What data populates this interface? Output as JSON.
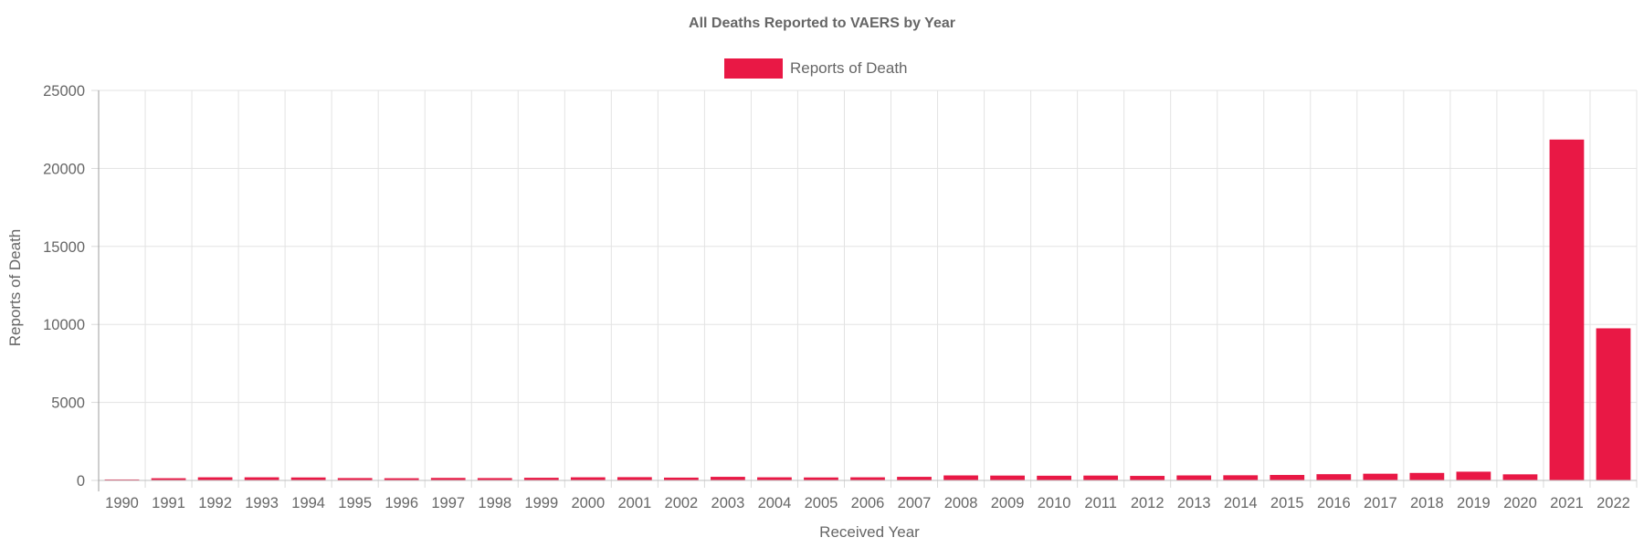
{
  "chart_data": {
    "type": "bar",
    "title": "All Deaths Reported to VAERS by Year",
    "xlabel": "Received Year",
    "ylabel": "Reports of Death",
    "ylim": [
      0,
      25000
    ],
    "yticks": [
      0,
      5000,
      10000,
      15000,
      20000,
      25000
    ],
    "grid": true,
    "legend_position": "top-center",
    "categories": [
      "1990",
      "1991",
      "1992",
      "1993",
      "1994",
      "1995",
      "1996",
      "1997",
      "1998",
      "1999",
      "2000",
      "2001",
      "2002",
      "2003",
      "2004",
      "2005",
      "2006",
      "2007",
      "2008",
      "2009",
      "2010",
      "2011",
      "2012",
      "2013",
      "2014",
      "2015",
      "2016",
      "2017",
      "2018",
      "2019",
      "2020",
      "2021",
      "2022"
    ],
    "series": [
      {
        "name": "Reports of Death",
        "color": "#e91845",
        "values": [
          60,
          140,
          200,
          200,
          190,
          150,
          140,
          160,
          150,
          170,
          200,
          210,
          180,
          230,
          200,
          190,
          200,
          230,
          320,
          310,
          300,
          310,
          290,
          320,
          330,
          350,
          400,
          430,
          480,
          560,
          390,
          21850,
          9750
        ]
      }
    ]
  }
}
